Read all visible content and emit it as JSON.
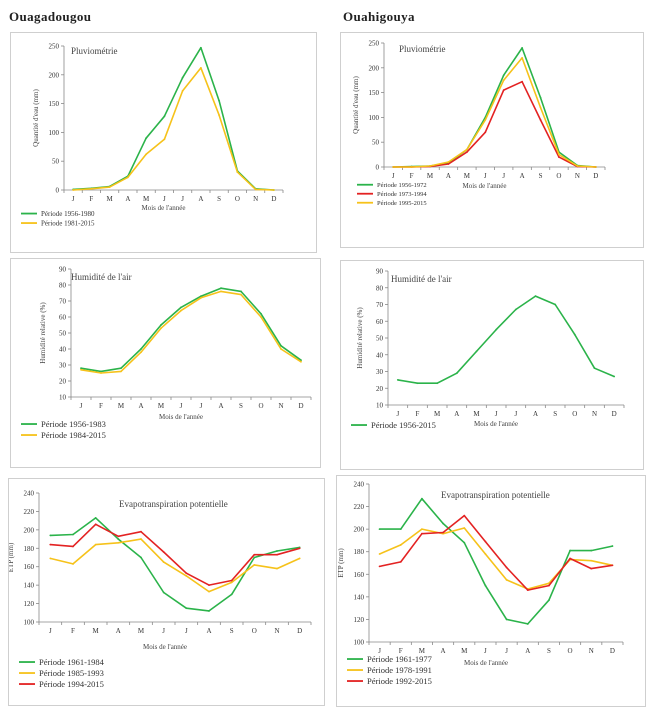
{
  "header": {
    "left_city": "Ouagadougou",
    "right_city": "Ouahigouya"
  },
  "colors": {
    "green": "#2bb34a",
    "yellow": "#f6c21a",
    "red": "#e32222",
    "axis": "#888888"
  },
  "chart_data": [
    {
      "id": "c1",
      "type": "line",
      "title": "Pluviométrie",
      "xlabel": "Mois de l'année",
      "ylabel": "Quantité d'eau (mm)",
      "categories": [
        "J",
        "F",
        "M",
        "A",
        "M",
        "J",
        "J",
        "A",
        "S",
        "O",
        "N",
        "D"
      ],
      "ylim": [
        0,
        250
      ],
      "yticks": [
        0,
        50,
        100,
        150,
        200,
        250
      ],
      "legend_position": "bottom-left",
      "series": [
        {
          "name": "Période 1956-1980",
          "color": "green",
          "values": [
            1,
            3,
            6,
            24,
            90,
            128,
            195,
            247,
            155,
            33,
            2,
            0
          ]
        },
        {
          "name": "Période 1981-2015",
          "color": "yellow",
          "values": [
            0,
            2,
            5,
            22,
            62,
            88,
            172,
            212,
            130,
            31,
            1,
            0
          ]
        }
      ]
    },
    {
      "id": "c2",
      "type": "line",
      "title": "Pluviométrie",
      "xlabel": "Mois de l'année",
      "ylabel": "Quantité d'eau (mm)",
      "categories": [
        "J",
        "F",
        "M",
        "A",
        "M",
        "J",
        "J",
        "A",
        "S",
        "O",
        "N",
        "D"
      ],
      "ylim": [
        0,
        250
      ],
      "yticks": [
        0,
        50,
        100,
        150,
        200,
        250
      ],
      "legend_position": "bottom-left",
      "series": [
        {
          "name": "Période 1956-1972",
          "color": "green",
          "values": [
            0,
            1,
            2,
            8,
            35,
            100,
            185,
            240,
            140,
            30,
            3,
            0
          ]
        },
        {
          "name": "Période 1973-1994",
          "color": "red",
          "values": [
            0,
            0,
            1,
            6,
            30,
            70,
            155,
            172,
            95,
            20,
            1,
            0
          ]
        },
        {
          "name": "Période 1995-2015",
          "color": "yellow",
          "values": [
            0,
            0,
            2,
            10,
            35,
            95,
            175,
            220,
            120,
            25,
            2,
            0
          ]
        }
      ]
    },
    {
      "id": "c3",
      "type": "line",
      "title": "Humidité de l'air",
      "xlabel": "Mois de l'année",
      "ylabel": "Humidité relative (%)",
      "categories": [
        "J",
        "F",
        "M",
        "A",
        "M",
        "J",
        "J",
        "A",
        "S",
        "O",
        "N",
        "D"
      ],
      "ylim": [
        10,
        90
      ],
      "yticks": [
        10,
        20,
        30,
        40,
        50,
        60,
        70,
        80,
        90
      ],
      "legend_position": "bottom-left",
      "series": [
        {
          "name": "Période 1956-1983",
          "color": "green",
          "values": [
            28,
            26,
            28,
            40,
            55,
            66,
            73,
            78,
            76,
            62,
            42,
            33
          ]
        },
        {
          "name": "Période 1984-2015",
          "color": "yellow",
          "values": [
            27,
            25,
            26,
            38,
            53,
            64,
            72,
            76,
            74,
            60,
            40,
            32
          ]
        }
      ]
    },
    {
      "id": "c4",
      "type": "line",
      "title": "Humidité de l'air",
      "xlabel": "Mois de l'année",
      "ylabel": "Humidité relative (%)",
      "categories": [
        "J",
        "F",
        "M",
        "A",
        "M",
        "J",
        "J",
        "A",
        "S",
        "O",
        "N",
        "D"
      ],
      "ylim": [
        10,
        90
      ],
      "yticks": [
        10,
        20,
        30,
        40,
        50,
        60,
        70,
        80,
        90
      ],
      "legend_position": "bottom-left",
      "series": [
        {
          "name": "Période 1956-2015",
          "color": "green",
          "values": [
            25,
            23,
            23,
            29,
            42,
            55,
            67,
            75,
            70,
            52,
            32,
            27
          ]
        }
      ]
    },
    {
      "id": "c5",
      "type": "line",
      "title": "Evapotranspiration potentielle",
      "xlabel": "Mois de l'année",
      "ylabel": "ETP (mm)",
      "categories": [
        "J",
        "F",
        "M",
        "A",
        "M",
        "J",
        "J",
        "A",
        "S",
        "O",
        "N",
        "D"
      ],
      "ylim": [
        100,
        240
      ],
      "yticks": [
        100,
        120,
        140,
        160,
        180,
        200,
        220,
        240
      ],
      "legend_position": "bottom-left",
      "series": [
        {
          "name": "Période 1961-1984",
          "color": "green",
          "values": [
            194,
            195,
            213,
            190,
            170,
            132,
            115,
            112,
            130,
            170,
            177,
            181
          ]
        },
        {
          "name": "Période 1985-1993",
          "color": "yellow",
          "values": [
            169,
            163,
            184,
            186,
            190,
            165,
            150,
            133,
            143,
            162,
            158,
            169
          ]
        },
        {
          "name": "Période 1994-2015",
          "color": "red",
          "values": [
            184,
            182,
            206,
            193,
            198,
            176,
            153,
            140,
            145,
            173,
            173,
            180
          ]
        }
      ]
    },
    {
      "id": "c6",
      "type": "line",
      "title": "Evapotranspiration potentielle",
      "xlabel": "Mois de l'année",
      "ylabel": "ETP (mm)",
      "categories": [
        "J",
        "F",
        "M",
        "A",
        "M",
        "J",
        "J",
        "A",
        "S",
        "O",
        "N",
        "D"
      ],
      "ylim": [
        100,
        240
      ],
      "yticks": [
        100,
        120,
        140,
        160,
        180,
        200,
        220,
        240
      ],
      "legend_position": "bottom-left",
      "series": [
        {
          "name": "Période 1961-1977",
          "color": "green",
          "values": [
            200,
            200,
            227,
            205,
            188,
            150,
            120,
            116,
            137,
            181,
            181,
            185
          ]
        },
        {
          "name": "Période 1978-1991",
          "color": "yellow",
          "values": [
            178,
            186,
            200,
            196,
            201,
            178,
            155,
            147,
            152,
            173,
            172,
            168
          ]
        },
        {
          "name": "Période 1992-2015",
          "color": "red",
          "values": [
            167,
            171,
            196,
            197,
            212,
            189,
            166,
            146,
            150,
            174,
            165,
            168
          ]
        }
      ]
    }
  ]
}
